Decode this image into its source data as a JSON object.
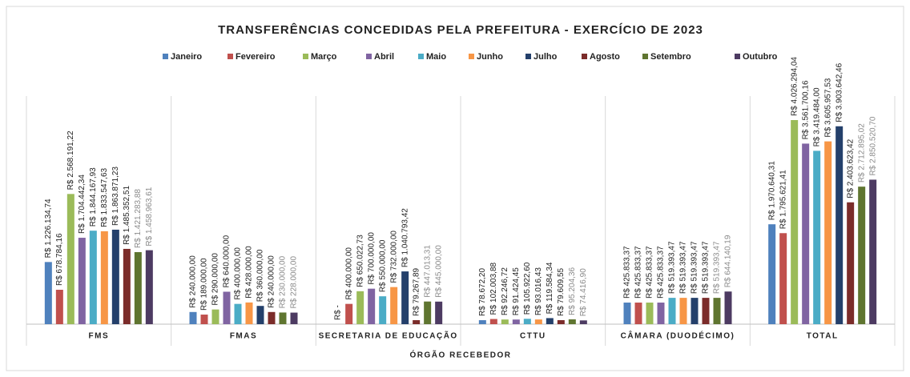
{
  "chart_data": {
    "type": "bar",
    "title": "TRANSFERÊNCIAS CONCEDIDAS PELA PREFEITURA - EXERCÍCIO DE 2023",
    "x_label": "ÓRGÃO RECEBEDOR",
    "categories": [
      "FMS",
      "FMAS",
      "SECRETARIA DE EDUCAÇÃO",
      "CTTU",
      "CÂMARA (DUODÉCIMO)",
      "TOTAL"
    ],
    "ylim": [
      0,
      4500000
    ],
    "series": [
      {
        "name": "Janeiro",
        "color": "#4f81bd",
        "label_color": "#222222",
        "values": [
          1226134.74,
          240000,
          0,
          78672.2,
          425833.37,
          1970640.31
        ],
        "value_labels": [
          "R$ 1.226.134,74",
          "R$ 240.000,00",
          "R$ -",
          "R$ 78.672,20",
          "R$ 425.833,37",
          "R$ 1.970.640,31"
        ]
      },
      {
        "name": "Fevereiro",
        "color": "#c0504d",
        "label_color": "#222222",
        "values": [
          678784.16,
          189000,
          400000,
          102003.88,
          425833.37,
          1795621.41
        ],
        "value_labels": [
          "R$ 678.784,16",
          "R$ 189.000,00",
          "R$ 400.000,00",
          "R$ 102.003,88",
          "R$ 425.833,37",
          "R$ 1.795.621,41"
        ]
      },
      {
        "name": "Março",
        "color": "#9bbb59",
        "label_color": "#222222",
        "values": [
          2568191.22,
          290000,
          650022.73,
          92246.72,
          425833.37,
          4026294.04
        ],
        "value_labels": [
          "R$ 2.568.191,22",
          "R$ 290.000,00",
          "R$ 650.022,73",
          "R$ 92.246,72",
          "R$ 425.833,37",
          "R$ 4.026.294,04"
        ]
      },
      {
        "name": "Abril",
        "color": "#8064a2",
        "label_color": "#222222",
        "values": [
          1704442.34,
          640000,
          700000,
          91424.45,
          425833.37,
          3561700.16
        ],
        "value_labels": [
          "R$ 1.704.442,34",
          "R$ 640.000,00",
          "R$ 700.000,00",
          "R$ 91.424,45",
          "R$ 425.833,37",
          "R$ 3.561.700,16"
        ]
      },
      {
        "name": "Maio",
        "color": "#4bacc6",
        "label_color": "#222222",
        "values": [
          1844167.93,
          400000,
          550000,
          105922.6,
          519393.47,
          3419484.0
        ],
        "value_labels": [
          "R$ 1.844.167,93",
          "R$ 400.000,00",
          "R$ 550.000,00",
          "R$ 105.922,60",
          "R$ 519.393,47",
          "R$ 3.419.484,00"
        ]
      },
      {
        "name": "Junho",
        "color": "#f79646",
        "label_color": "#222222",
        "values": [
          1833547.63,
          428000,
          732000,
          93016.43,
          519393.47,
          3605957.53
        ],
        "value_labels": [
          "R$ 1.833.547,63",
          "R$ 428.000,00",
          "R$ 732.000,00",
          "R$ 93.016,43",
          "R$ 519.393,47",
          "R$ 3.605.957,53"
        ]
      },
      {
        "name": "Julho",
        "color": "#24406b",
        "label_color": "#222222",
        "values": [
          1863871.23,
          360000,
          1040793.42,
          119584.34,
          519393.47,
          3903642.46
        ],
        "value_labels": [
          "R$ 1.863.871,23",
          "R$ 360.000,00",
          "R$ 1.040.793,42",
          "R$ 119.584,34",
          "R$ 519.393,47",
          "R$ 3.903.642,46"
        ]
      },
      {
        "name": "Agosto",
        "color": "#7b2c2a",
        "label_color": "#222222",
        "values": [
          1485352.51,
          240000,
          79267.89,
          79609.55,
          519393.47,
          2403623.42
        ],
        "value_labels": [
          "R$ 1.485.352,51",
          "R$ 240.000,00",
          "R$ 79.267,89",
          "R$ 79.609,55",
          "R$ 519.393,47",
          "R$ 2.403.623,42"
        ]
      },
      {
        "name": "Setembro",
        "color": "#5f7530",
        "label_color": "#8a8a8a",
        "values": [
          1421283.88,
          230000,
          447013.31,
          95204.36,
          519393.47,
          2712895.02
        ],
        "value_labels": [
          "R$ 1.421.283,88",
          "R$ 230.000,00",
          "R$ 447.013,31",
          "R$ 95.204,36",
          "R$ 519.393,47",
          "R$ 2.712.895,02"
        ]
      },
      {
        "name": "Outubro",
        "color": "#4d3b62",
        "label_color": "#8a8a8a",
        "values": [
          1458963.61,
          228000,
          445000,
          74416.9,
          644140.19,
          2850520.7
        ],
        "value_labels": [
          "R$ 1.458.963,61",
          "R$ 228.000,00",
          "R$ 445.000,00",
          "R$ 74.416,90",
          "R$ 644.140,19",
          "R$ 2.850.520,70"
        ]
      }
    ]
  }
}
